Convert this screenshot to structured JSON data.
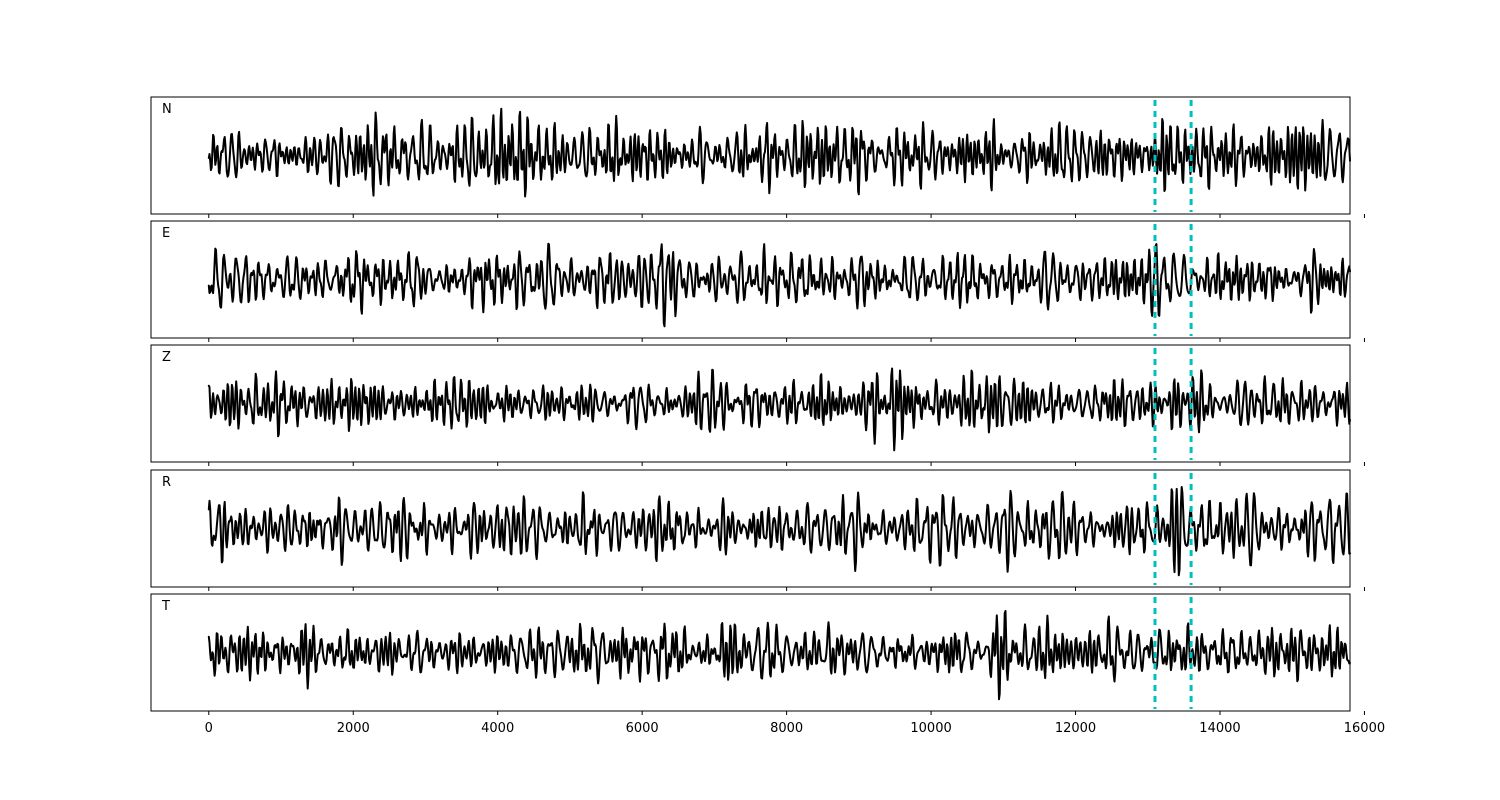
{
  "chart_data": {
    "type": "line",
    "title": "",
    "xlabel": "",
    "ylabel": "",
    "xlim": [
      -800,
      15800
    ],
    "x_ticks": [
      0,
      2000,
      4000,
      6000,
      8000,
      10000,
      12000,
      14000,
      16000
    ],
    "x_tick_labels": [
      "0",
      "2000",
      "4000",
      "6000",
      "8000",
      "10000",
      "12000",
      "14000",
      "16000"
    ],
    "shared_x": true,
    "grid": false,
    "legend": "none",
    "n_samples": 15800,
    "vertical_markers": [
      13100,
      13600
    ],
    "trace_color": "#000000",
    "marker_color": "#00bfbf",
    "series": [
      {
        "name": "N",
        "ylim": [
          -1.15,
          1.15
        ]
      },
      {
        "name": "E",
        "ylim": [
          -1.15,
          1.15
        ]
      },
      {
        "name": "Z",
        "ylim": [
          -1.15,
          1.15
        ]
      },
      {
        "name": "R",
        "ylim": [
          -1.15,
          1.15
        ]
      },
      {
        "name": "T",
        "ylim": [
          -1.15,
          1.15
        ]
      }
    ]
  }
}
